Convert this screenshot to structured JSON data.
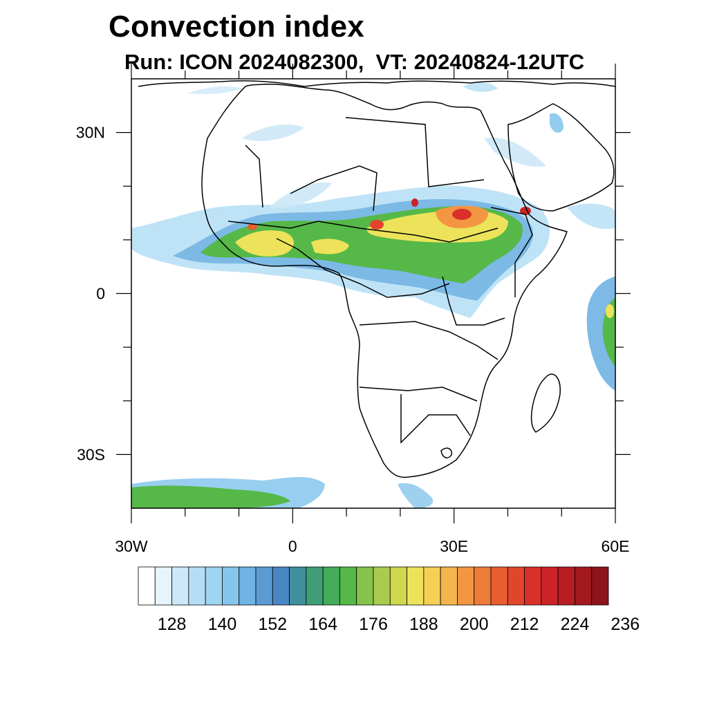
{
  "title": "Convection index",
  "subtitle": "Run: ICON 2024082300,  VT: 20240824-12UTC",
  "map": {
    "lat_labels": [
      "30N",
      "0",
      "30S"
    ],
    "lon_labels": [
      "30W",
      "0",
      "30E",
      "60E"
    ],
    "lon_range": [
      -30,
      60
    ],
    "lat_range": [
      -40,
      40
    ]
  },
  "colorbar": {
    "colors": [
      "#ffffff",
      "#e8f4fb",
      "#cde8f7",
      "#b4def5",
      "#9dd5f3",
      "#86c6ec",
      "#70b2e2",
      "#5a9bd4",
      "#4a86c1",
      "#3f8f9c",
      "#3f9e78",
      "#43ab5a",
      "#55b848",
      "#86c34a",
      "#a9cc4f",
      "#cfd84f",
      "#ece35a",
      "#f6cf55",
      "#f5b44c",
      "#f39642",
      "#ee7b39",
      "#e85e31",
      "#e2452b",
      "#d93029",
      "#cc2228",
      "#b81c23",
      "#a2181f",
      "#8d141b"
    ],
    "labels": [
      "128",
      "140",
      "152",
      "164",
      "176",
      "188",
      "200",
      "212",
      "224",
      "236"
    ]
  }
}
